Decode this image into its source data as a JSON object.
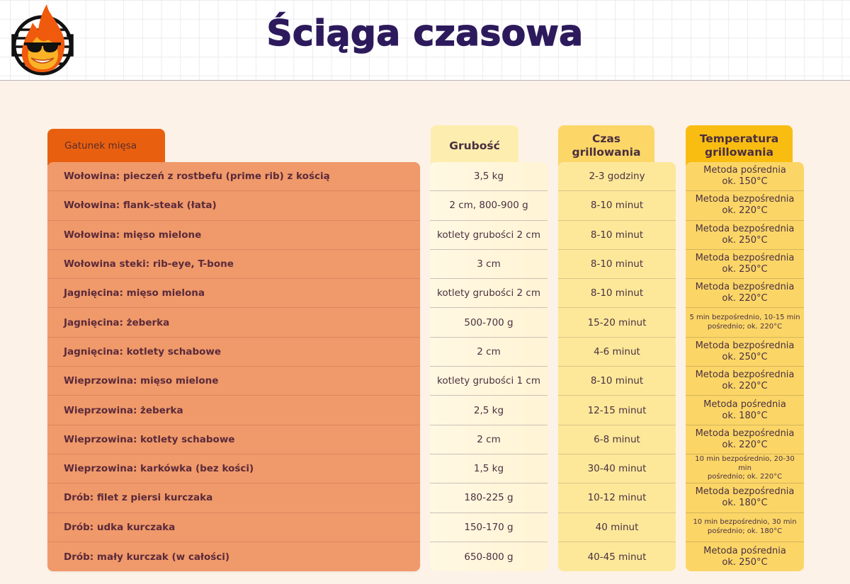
{
  "header": {
    "title": "Ściąga czasowa",
    "logo": "flaming-grill-mascot-with-sunglasses"
  },
  "colors": {
    "title": "#2d1a5c",
    "meat_header": "#e8600f",
    "meat_body": "#f0996a",
    "thickness_header": "#fdeeb0",
    "time_header": "#fcd768",
    "temp_header": "#f9bd12",
    "page_bg": "#fdf2e7"
  },
  "table": {
    "columns": {
      "meat": "Gatunek mięsa",
      "thickness": "Grubość",
      "time_line1": "Czas",
      "time_line2": "grillowania",
      "temp_line1": "Temperatura",
      "temp_line2": "grillowania"
    },
    "rows": [
      {
        "meat": "Wołowina: pieczeń z rostbefu (prime rib) z kością",
        "thickness": "3,5 kg",
        "time": "2-3 godziny",
        "temp1": "Metoda pośrednia",
        "temp2": "ok. 150°C",
        "small": false
      },
      {
        "meat": "Wołowina: flank-steak (łata)",
        "thickness": "2 cm, 800-900 g",
        "time": "8-10 minut",
        "temp1": "Metoda bezpośrednia",
        "temp2": "ok. 220°C",
        "small": false
      },
      {
        "meat": "Wołowina: mięso mielone",
        "thickness": "kotlety grubości 2 cm",
        "time": "8-10 minut",
        "temp1": "Metoda bezpośrednia",
        "temp2": "ok. 250°C",
        "small": false
      },
      {
        "meat": "Wołowina steki: rib-eye, T-bone",
        "thickness": "3 cm",
        "time": "8-10 minut",
        "temp1": "Metoda bezpośrednia",
        "temp2": "ok. 250°C",
        "small": false
      },
      {
        "meat": "Jagnięcina: mięso mielona",
        "thickness": "kotlety grubości 2 cm",
        "time": "8-10 minut",
        "temp1": "Metoda bezpośrednia",
        "temp2": "ok. 220°C",
        "small": false
      },
      {
        "meat": "Jagnięcina: żeberka",
        "thickness": "500-700 g",
        "time": "15-20 minut",
        "temp1": "5 min bezpośrednio, 10-15 min",
        "temp2": "pośrednio; ok. 220°C",
        "small": true
      },
      {
        "meat": "Jagnięcina: kotlety schabowe",
        "thickness": "2 cm",
        "time": "4-6 minut",
        "temp1": "Metoda bezpośrednia",
        "temp2": "ok. 250°C",
        "small": false
      },
      {
        "meat": "Wieprzowina: mięso mielone",
        "thickness": "kotlety grubości 1 cm",
        "time": "8-10 minut",
        "temp1": "Metoda bezpośrednia",
        "temp2": "ok. 220°C",
        "small": false
      },
      {
        "meat": "Wieprzowina: żeberka",
        "thickness": "2,5 kg",
        "time": "12-15 minut",
        "temp1": "Metoda pośrednia",
        "temp2": "ok. 180°C",
        "small": false
      },
      {
        "meat": "Wieprzowina: kotlety schabowe",
        "thickness": "2 cm",
        "time": "6-8 minut",
        "temp1": "Metoda bezpośrednia",
        "temp2": "ok. 220°C",
        "small": false
      },
      {
        "meat": "Wieprzowina: karkówka (bez kości)",
        "thickness": "1,5 kg",
        "time": "30-40 minut",
        "temp1": "10 min bezpośrednio, 20-30 min",
        "temp2": "pośrednio; ok. 220°C",
        "small": true
      },
      {
        "meat": "Drób: filet z piersi kurczaka",
        "thickness": "180-225 g",
        "time": "10-12 minut",
        "temp1": "Metoda bezpośrednia",
        "temp2": "ok. 180°C",
        "small": false
      },
      {
        "meat": "Drób: udka kurczaka",
        "thickness": "150-170 g",
        "time": "40 minut",
        "temp1": "10 min bezpośrednio, 30 min",
        "temp2": "pośrednio; ok. 180°C",
        "small": true
      },
      {
        "meat": "Drób: mały kurczak (w całości)",
        "thickness": "650-800 g",
        "time": "40-45 minut",
        "temp1": "Metoda pośrednia",
        "temp2": "ok. 250°C",
        "small": false
      }
    ]
  }
}
